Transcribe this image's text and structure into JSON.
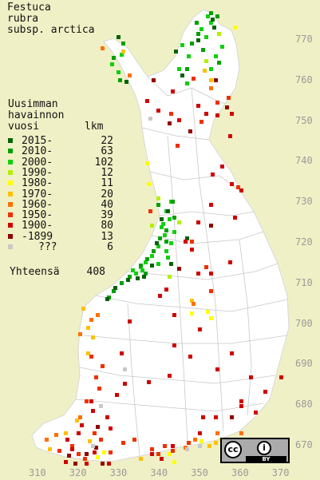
{
  "title": {
    "line1": "Festuca",
    "line2": "rubra",
    "line3": "subsp. arctica"
  },
  "legend": {
    "heading1": "Uusimman",
    "heading2": "havainnon",
    "heading3": "vuosi",
    "count_header": "lkm",
    "items": [
      {
        "label": "2015-",
        "count": "22",
        "color": "#006400"
      },
      {
        "label": "2010-",
        "count": "63",
        "color": "#00a000"
      },
      {
        "label": "2000-",
        "count": "102",
        "color": "#10d010"
      },
      {
        "label": "1990-",
        "count": "12",
        "color": "#b4f000"
      },
      {
        "label": "1980-",
        "count": "11",
        "color": "#ffff00"
      },
      {
        "label": "1970-",
        "count": "20",
        "color": "#ffc000"
      },
      {
        "label": "1960-",
        "count": "40",
        "color": "#ff7000"
      },
      {
        "label": "1950-",
        "count": "39",
        "color": "#f03000"
      },
      {
        "label": "1900-",
        "count": "80",
        "color": "#d00000"
      },
      {
        "label": "-1899",
        "count": "13",
        "color": "#900000"
      },
      {
        "label": "???",
        "count": "6",
        "color": "#c8c8c8"
      }
    ],
    "total_label": "Yhteensä",
    "total_count": "408"
  },
  "y_axis_ticks": [
    "770",
    "760",
    "750",
    "740",
    "730",
    "720",
    "710",
    "700",
    "690",
    "680",
    "670"
  ],
  "x_axis_ticks": [
    "310",
    "320",
    "330",
    "340",
    "350",
    "360",
    "370"
  ],
  "license": {
    "cc": "cc",
    "by": "BY",
    "icon": "person-icon"
  },
  "colors": {
    "background": "#f0f0c6",
    "land": "#ffffff",
    "border": "#bbbbbb"
  }
}
